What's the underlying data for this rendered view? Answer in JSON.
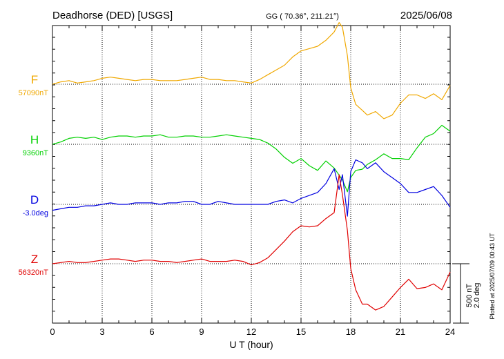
{
  "header": {
    "station": "Deadhorse (DED)  [USGS]",
    "coords": "GG ( 70.36°, 211.21°)",
    "date": "2025/06/08"
  },
  "footer": {
    "plotted": "Plotted at 2025/07/09 00:43 UT"
  },
  "colors": {
    "F": "#f0a800",
    "H": "#00d000",
    "D": "#0000e0",
    "Z": "#e00000",
    "axis": "#000000",
    "grid": "#000000"
  },
  "chart_data": {
    "type": "line",
    "xlabel": "U T (hour)",
    "xlim": [
      0,
      24
    ],
    "xticks": [
      0,
      3,
      6,
      9,
      12,
      15,
      18,
      21,
      24
    ],
    "scale_bar": {
      "line1": "500 nT",
      "line2": "2.0 deg"
    },
    "series": [
      {
        "name": "F",
        "baseline_label": "57090nT",
        "unit": "nT",
        "baseline": 57090,
        "x": [
          0,
          0.5,
          1,
          1.5,
          2,
          2.5,
          3,
          3.5,
          4,
          4.5,
          5,
          5.5,
          6,
          6.5,
          7,
          7.5,
          8,
          8.5,
          9,
          9.5,
          10,
          10.5,
          11,
          11.5,
          12,
          12.5,
          13,
          13.5,
          14,
          14.5,
          15,
          15.5,
          16,
          16.5,
          17,
          17.3,
          17.5,
          17.8,
          18,
          18.3,
          18.7,
          19,
          19.5,
          20,
          20.5,
          21,
          21.5,
          22,
          22.5,
          23,
          23.5,
          24
        ],
        "values": [
          57090,
          57110,
          57120,
          57100,
          57110,
          57120,
          57140,
          57150,
          57140,
          57130,
          57120,
          57130,
          57130,
          57120,
          57120,
          57120,
          57130,
          57140,
          57150,
          57130,
          57130,
          57120,
          57120,
          57110,
          57100,
          57130,
          57170,
          57210,
          57250,
          57320,
          57370,
          57390,
          57410,
          57460,
          57530,
          57610,
          57570,
          57330,
          57060,
          56920,
          56870,
          56830,
          56860,
          56800,
          56830,
          56930,
          57000,
          57000,
          56970,
          57010,
          56960,
          57080
        ]
      },
      {
        "name": "H",
        "baseline_label": "9360nT",
        "unit": "nT",
        "baseline": 9360,
        "x": [
          0,
          0.5,
          1,
          1.5,
          2,
          2.5,
          3,
          3.5,
          4,
          4.5,
          5,
          5.5,
          6,
          6.5,
          7,
          7.5,
          8,
          8.5,
          9,
          9.5,
          10,
          10.5,
          11,
          11.5,
          12,
          12.5,
          13,
          13.5,
          14,
          14.5,
          15,
          15.5,
          16,
          16.5,
          17,
          17.3,
          17.5,
          17.8,
          18,
          18.3,
          18.7,
          19,
          19.5,
          20,
          20.5,
          21,
          21.5,
          22,
          22.5,
          23,
          23.5,
          24
        ],
        "values": [
          9360,
          9380,
          9410,
          9420,
          9410,
          9420,
          9400,
          9420,
          9430,
          9430,
          9420,
          9430,
          9430,
          9440,
          9420,
          9420,
          9430,
          9430,
          9420,
          9420,
          9430,
          9440,
          9430,
          9420,
          9410,
          9400,
          9370,
          9320,
          9250,
          9200,
          9240,
          9180,
          9140,
          9220,
          9160,
          9100,
          9060,
          8960,
          9080,
          9140,
          9150,
          9190,
          9230,
          9280,
          9240,
          9240,
          9230,
          9330,
          9420,
          9450,
          9520,
          9470
        ]
      },
      {
        "name": "D",
        "baseline_label": "-3.0deg",
        "unit": "deg",
        "baseline": -3.0,
        "x": [
          0,
          0.5,
          1,
          1.5,
          2,
          2.5,
          3,
          3.5,
          4,
          4.5,
          5,
          5.5,
          6,
          6.5,
          7,
          7.5,
          8,
          8.5,
          9,
          9.5,
          10,
          10.5,
          11,
          11.5,
          12,
          12.5,
          13,
          13.5,
          14,
          14.5,
          15,
          15.5,
          16,
          16.5,
          17,
          17.3,
          17.5,
          17.8,
          18,
          18.3,
          18.7,
          19,
          19.5,
          20,
          20.5,
          21,
          21.5,
          22,
          22.5,
          23,
          23.5,
          24
        ],
        "values": [
          -3.2,
          -3.15,
          -3.1,
          -3.1,
          -3.05,
          -3.05,
          -3.0,
          -2.95,
          -3.0,
          -3.0,
          -2.95,
          -2.95,
          -2.95,
          -3.0,
          -2.95,
          -2.95,
          -2.9,
          -2.9,
          -3.0,
          -3.0,
          -2.9,
          -2.95,
          -3.0,
          -3.0,
          -3.0,
          -3.0,
          -3.0,
          -2.9,
          -2.85,
          -2.95,
          -2.8,
          -2.7,
          -2.6,
          -2.3,
          -1.8,
          -2.5,
          -2.0,
          -3.4,
          -1.9,
          -1.5,
          -1.6,
          -1.8,
          -1.6,
          -1.9,
          -2.1,
          -2.3,
          -2.6,
          -2.6,
          -2.5,
          -2.4,
          -2.7,
          -3.1
        ]
      },
      {
        "name": "Z",
        "baseline_label": "56320nT",
        "unit": "nT",
        "baseline": 56320,
        "x": [
          0,
          0.5,
          1,
          1.5,
          2,
          2.5,
          3,
          3.5,
          4,
          4.5,
          5,
          5.5,
          6,
          6.5,
          7,
          7.5,
          8,
          8.5,
          9,
          9.5,
          10,
          10.5,
          11,
          11.5,
          12,
          12.5,
          13,
          13.5,
          14,
          14.5,
          15,
          15.5,
          16,
          16.5,
          17,
          17.3,
          17.5,
          17.8,
          18,
          18.3,
          18.7,
          19,
          19.5,
          20,
          20.5,
          21,
          21.5,
          22,
          22.5,
          23,
          23.5,
          24
        ],
        "values": [
          56320,
          56330,
          56340,
          56330,
          56330,
          56340,
          56350,
          56360,
          56360,
          56350,
          56340,
          56350,
          56350,
          56340,
          56340,
          56330,
          56340,
          56350,
          56360,
          56340,
          56340,
          56340,
          56350,
          56340,
          56310,
          56330,
          56370,
          56440,
          56510,
          56590,
          56640,
          56630,
          56640,
          56700,
          56750,
          57070,
          56900,
          56600,
          56280,
          56100,
          55980,
          55980,
          55930,
          55960,
          56040,
          56120,
          56190,
          56110,
          56120,
          56150,
          56100,
          56250
        ]
      }
    ]
  }
}
